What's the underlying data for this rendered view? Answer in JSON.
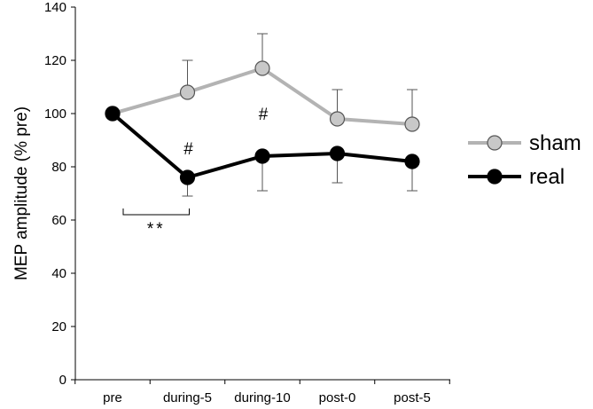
{
  "chart_data": {
    "type": "line",
    "title": "",
    "xlabel": "",
    "ylabel": "MEP amplitude (% pre)",
    "categories": [
      "pre",
      "during-5",
      "during-10",
      "post-0",
      "post-5"
    ],
    "ylim": [
      0,
      140
    ],
    "yticks": [
      0,
      20,
      40,
      60,
      80,
      100,
      120,
      140
    ],
    "grid": false,
    "legend_position": "right",
    "series": [
      {
        "name": "sham",
        "values": [
          100,
          108,
          117,
          98,
          96
        ],
        "error": [
          0,
          12,
          13,
          11,
          13
        ],
        "error_direction": "up",
        "line_color": "#b3b3b3",
        "marker_fill": "#c8c8c8",
        "marker_edge": "#555555"
      },
      {
        "name": "real",
        "values": [
          100,
          76,
          84,
          85,
          82
        ],
        "error": [
          0,
          7,
          13,
          11,
          11
        ],
        "error_direction": "down",
        "line_color": "#000000",
        "marker_fill": "#000000",
        "marker_edge": "#000000"
      }
    ],
    "annotations": [
      {
        "text": "#",
        "category": "during-5",
        "y": 87
      },
      {
        "text": "#",
        "category": "during-10",
        "y": 100
      },
      {
        "text": "**",
        "bracket": [
          "pre",
          "during-5"
        ],
        "y": 62
      }
    ]
  }
}
